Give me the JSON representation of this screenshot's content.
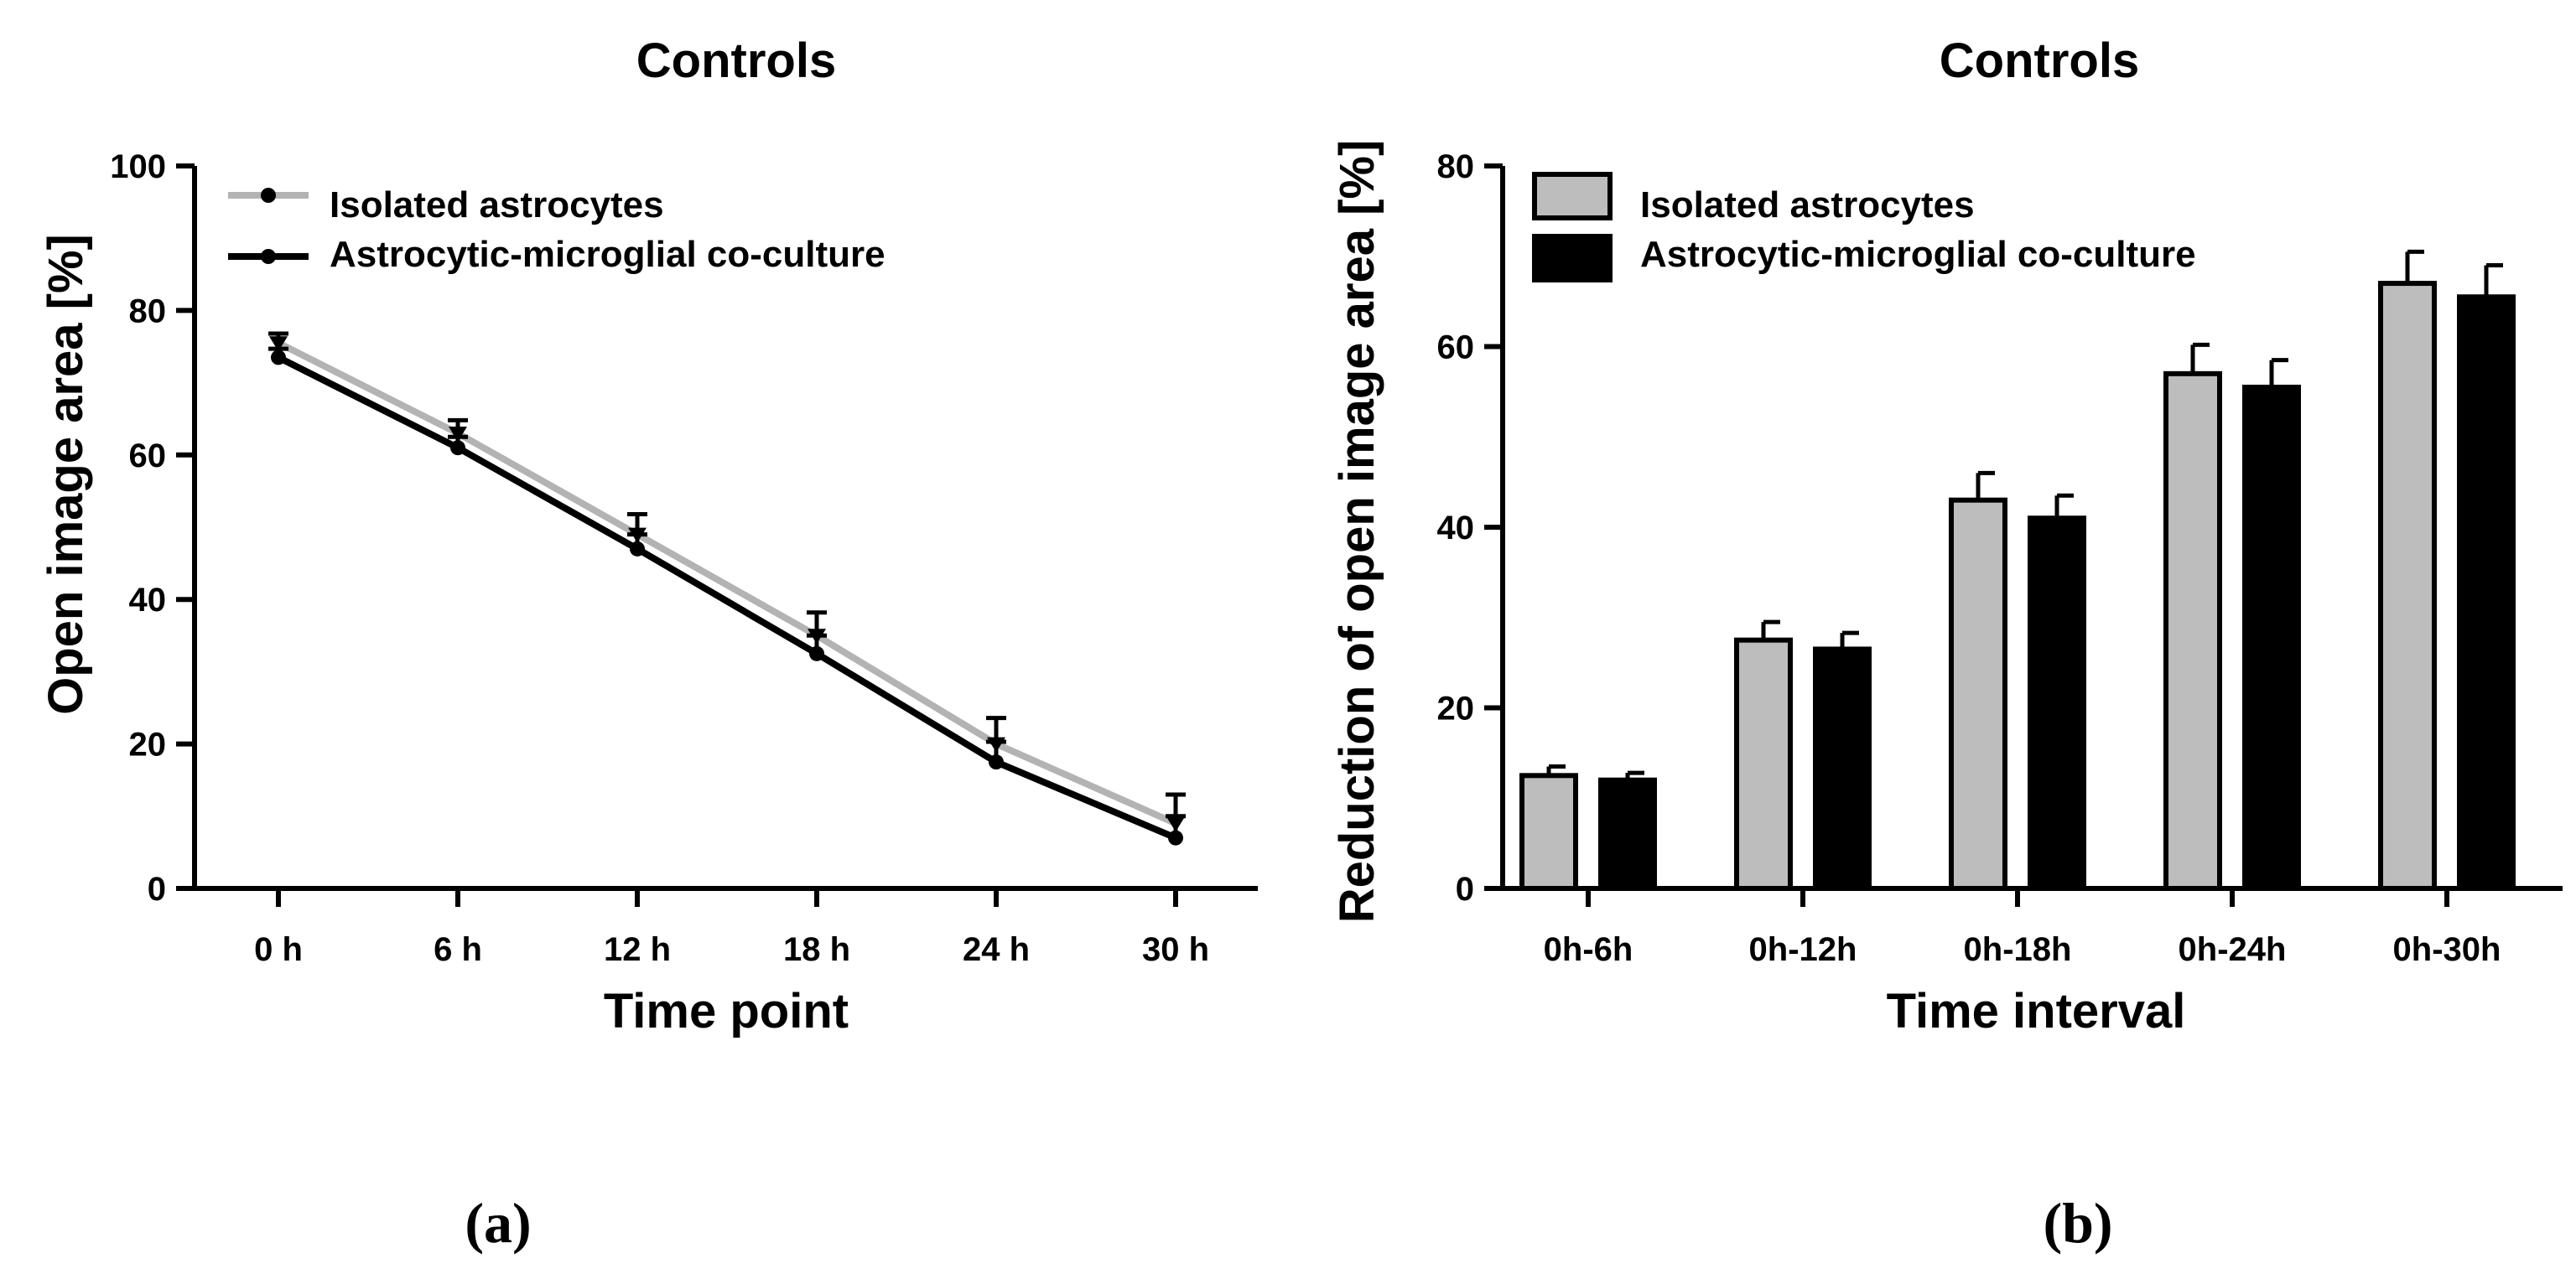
{
  "chart_data": [
    {
      "type": "line",
      "title": "Controls",
      "xlabel": "Time point",
      "ylabel": "Open image area [%]",
      "categories": [
        "0 h",
        "6 h",
        "12 h",
        "18 h",
        "24 h",
        "30 h"
      ],
      "ylim": [
        0,
        100
      ],
      "yticks": [
        0,
        20,
        40,
        60,
        80,
        100
      ],
      "legend_position": "top-left",
      "series": [
        {
          "name": "Isolated astrocytes",
          "color": "#b3b3b3",
          "values": [
            75.5,
            63.0,
            49.0,
            35.0,
            20.0,
            9.0
          ],
          "errors": [
            1.3,
            1.8,
            2.8,
            3.2,
            3.6,
            4.0
          ]
        },
        {
          "name": "Astrocytic-microglial co-culture",
          "color": "#000000",
          "values": [
            73.5,
            61.0,
            47.0,
            32.5,
            17.5,
            7.0
          ],
          "errors": [
            1.2,
            1.5,
            2.0,
            2.5,
            2.8,
            3.0
          ]
        }
      ],
      "panel_label": "(a)"
    },
    {
      "type": "bar",
      "title": "Controls",
      "xlabel": "Time interval",
      "ylabel": "Reduction of open image area [%]",
      "categories": [
        "0h-6h",
        "0h-12h",
        "0h-18h",
        "0h-24h",
        "0h-30h"
      ],
      "ylim": [
        0,
        80
      ],
      "yticks": [
        0,
        20,
        40,
        60,
        80
      ],
      "legend_position": "top-left",
      "series": [
        {
          "name": "Isolated astrocytes",
          "color": "#bdbdbd",
          "values": [
            12.5,
            27.5,
            43.0,
            57.0,
            67.0
          ],
          "errors": [
            1.0,
            2.0,
            3.0,
            3.2,
            3.5
          ]
        },
        {
          "name": "Astrocytic-microglial co-culture",
          "color": "#000000",
          "values": [
            12.0,
            26.5,
            41.0,
            55.5,
            65.5
          ],
          "errors": [
            0.8,
            1.8,
            2.5,
            3.0,
            3.5
          ]
        }
      ],
      "panel_label": "(b)"
    }
  ]
}
